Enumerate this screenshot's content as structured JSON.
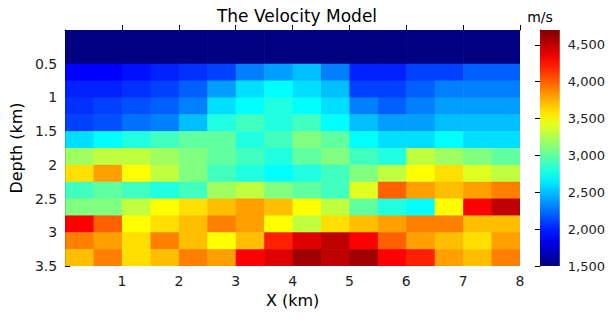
{
  "chart_data": {
    "type": "heatmap",
    "title": "The Velocity Model",
    "x_label": "X (km)",
    "y_label": "Depth (km)",
    "xlim": [
      0,
      8
    ],
    "xticks": [
      1,
      2,
      3,
      4,
      5,
      6,
      7,
      8
    ],
    "ylim": [
      3.5,
      0
    ],
    "yticks": [
      0.5,
      1,
      1.5,
      2,
      2.5,
      3,
      3.5
    ],
    "x_edges": [
      0,
      0.5,
      1,
      1.5,
      2,
      2.5,
      3,
      3.5,
      4,
      4.5,
      5,
      5.5,
      6,
      6.5,
      7,
      7.5,
      8
    ],
    "y_edges": [
      0,
      0.25,
      0.5,
      0.75,
      1,
      1.25,
      1.5,
      1.75,
      2,
      2.25,
      2.5,
      2.75,
      3,
      3.25,
      3.5
    ],
    "cells": [
      [
        1500,
        1500,
        1500,
        1500,
        1500,
        1500,
        1500,
        1500,
        1500,
        1500,
        1500,
        1500,
        1500,
        1500,
        1500,
        1500
      ],
      [
        1500,
        1500,
        1500,
        1500,
        1500,
        1500,
        1500,
        1500,
        1500,
        1500,
        1500,
        1500,
        1500,
        1500,
        1500,
        1500
      ],
      [
        1900,
        1900,
        1950,
        2000,
        2050,
        2100,
        2300,
        2400,
        2500,
        2300,
        2000,
        2000,
        2100,
        2100,
        2200,
        2200
      ],
      [
        2000,
        2000,
        2050,
        2100,
        2200,
        2400,
        2600,
        2700,
        2600,
        2500,
        2100,
        2100,
        2200,
        2300,
        2300,
        2300
      ],
      [
        2050,
        2100,
        2150,
        2200,
        2300,
        2600,
        2700,
        2800,
        2700,
        2600,
        2300,
        2200,
        2300,
        2400,
        2400,
        2400
      ],
      [
        2100,
        2150,
        2250,
        2300,
        2500,
        2800,
        2900,
        2800,
        2900,
        2700,
        2500,
        2400,
        2400,
        2500,
        2500,
        2500
      ],
      [
        2600,
        2700,
        2800,
        2900,
        3000,
        3000,
        2800,
        2900,
        3100,
        3000,
        2700,
        2600,
        2600,
        2700,
        2600,
        2600
      ],
      [
        3200,
        3300,
        3300,
        3200,
        3100,
        3000,
        2900,
        2800,
        3000,
        3100,
        2900,
        2800,
        3300,
        3200,
        3100,
        3000
      ],
      [
        3600,
        3800,
        3500,
        3300,
        3100,
        2900,
        2800,
        2700,
        2800,
        2900,
        3100,
        3300,
        3500,
        3600,
        3400,
        3300
      ],
      [
        2900,
        3000,
        2900,
        2800,
        2900,
        3200,
        3300,
        3100,
        3000,
        2900,
        3400,
        4000,
        3800,
        3700,
        3800,
        3900
      ],
      [
        3100,
        3100,
        3300,
        3500,
        3600,
        3700,
        3800,
        3700,
        3500,
        3300,
        3000,
        2800,
        2700,
        3500,
        4300,
        4500
      ],
      [
        4300,
        4000,
        3500,
        3600,
        3700,
        3900,
        3800,
        3500,
        3300,
        3600,
        3700,
        3800,
        3900,
        3900,
        3700,
        3700
      ],
      [
        3900,
        3800,
        3600,
        3900,
        3700,
        3500,
        3700,
        4200,
        4400,
        4500,
        4300,
        4000,
        3800,
        3700,
        3600,
        3800
      ],
      [
        3700,
        3900,
        3600,
        3700,
        3900,
        3800,
        4300,
        4400,
        4600,
        4500,
        4600,
        4300,
        4200,
        3800,
        3700,
        3900
      ]
    ],
    "colorbar": {
      "label": "m/s",
      "range": [
        1500,
        4700
      ],
      "ticks": [
        1500,
        2000,
        2500,
        3000,
        3500,
        4000,
        4500
      ]
    }
  }
}
